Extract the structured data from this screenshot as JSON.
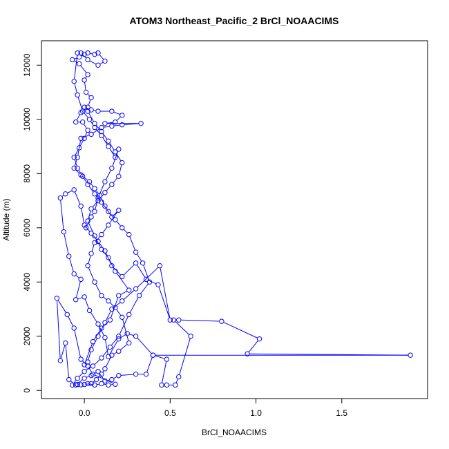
{
  "chart_data": {
    "type": "line",
    "title": "ATOM3 Northeast_Pacific_2 BrCl_NOAACIMS",
    "xlabel": "BrCl_NOAACIMS",
    "ylabel": "Altitude (m)",
    "xlim": [
      -0.25,
      2.0
    ],
    "ylim": [
      -300,
      12900
    ],
    "x_ticks": [
      0.0,
      0.5,
      1.0,
      1.5
    ],
    "x_tick_labels": [
      "0.0",
      "0.5",
      "1.0",
      "1.5"
    ],
    "y_ticks": [
      0,
      2000,
      4000,
      6000,
      8000,
      10000,
      12000
    ],
    "y_tick_labels": [
      "0",
      "2000",
      "4000",
      "6000",
      "8000",
      "10000",
      "12000"
    ],
    "grid": false,
    "series": [
      {
        "color": "#0000ff",
        "marker": "open-circle",
        "points": [
          [
            0.02,
            250
          ],
          [
            0.06,
            200
          ],
          [
            0.1,
            250
          ],
          [
            0.14,
            200
          ],
          [
            0.18,
            230
          ],
          [
            0.05,
            600
          ],
          [
            0.02,
            900
          ],
          [
            -0.02,
            1150
          ],
          [
            -0.06,
            2300
          ],
          [
            -0.1,
            2800
          ],
          [
            -0.16,
            3400
          ],
          [
            -0.14,
            1100
          ],
          [
            -0.11,
            1750
          ],
          [
            -0.09,
            400
          ],
          [
            -0.05,
            200
          ],
          [
            0.0,
            450
          ],
          [
            0.04,
            550
          ],
          [
            0.08,
            700
          ],
          [
            0.12,
            350
          ],
          [
            0.16,
            400
          ],
          [
            0.2,
            550
          ],
          [
            0.3,
            600
          ],
          [
            0.36,
            600
          ],
          [
            0.4,
            1300
          ],
          [
            0.48,
            1150
          ],
          [
            0.45,
            200
          ],
          [
            0.48,
            200
          ],
          [
            0.53,
            200
          ],
          [
            0.55,
            500
          ],
          [
            0.62,
            2000
          ],
          [
            0.52,
            2600
          ],
          [
            0.55,
            2600
          ],
          [
            0.8,
            2550
          ],
          [
            1.02,
            1900
          ],
          [
            0.95,
            1350
          ],
          [
            1.9,
            1300
          ],
          [
            0.4,
            1300
          ],
          [
            0.3,
            2000
          ],
          [
            0.25,
            2100
          ],
          [
            0.2,
            1900
          ],
          [
            0.14,
            1250
          ],
          [
            0.12,
            1950
          ],
          [
            0.08,
            2450
          ],
          [
            0.03,
            2950
          ],
          [
            0.0,
            3450
          ],
          [
            -0.05,
            3350
          ],
          [
            -0.02,
            4100
          ],
          [
            -0.06,
            4300
          ],
          [
            -0.09,
            4950
          ],
          [
            -0.12,
            5850
          ],
          [
            -0.14,
            7100
          ],
          [
            -0.11,
            7250
          ],
          [
            -0.06,
            7400
          ],
          [
            -0.02,
            6800
          ],
          [
            0.0,
            6100
          ],
          [
            0.04,
            5800
          ],
          [
            0.08,
            5500
          ],
          [
            0.12,
            5150
          ],
          [
            0.16,
            4600
          ],
          [
            0.22,
            4200
          ],
          [
            0.3,
            4700
          ],
          [
            0.36,
            4100
          ],
          [
            0.43,
            3900
          ],
          [
            0.5,
            2600
          ],
          [
            0.44,
            4600
          ],
          [
            0.3,
            3750
          ],
          [
            0.22,
            3300
          ],
          [
            0.16,
            3000
          ],
          [
            0.12,
            2500
          ],
          [
            0.08,
            2000
          ],
          [
            0.04,
            1500
          ],
          [
            0.02,
            1050
          ],
          [
            0.0,
            950
          ],
          [
            0.05,
            1800
          ],
          [
            0.1,
            2300
          ],
          [
            0.15,
            2600
          ],
          [
            0.2,
            3500
          ],
          [
            0.26,
            3700
          ],
          [
            0.18,
            4400
          ],
          [
            0.14,
            4900
          ],
          [
            0.1,
            5200
          ],
          [
            0.06,
            5700
          ],
          [
            0.02,
            6250
          ],
          [
            0.04,
            6700
          ],
          [
            0.08,
            7000
          ],
          [
            0.12,
            7300
          ],
          [
            0.16,
            7600
          ],
          [
            0.2,
            7900
          ],
          [
            0.22,
            8400
          ],
          [
            0.18,
            8800
          ],
          [
            0.14,
            9200
          ],
          [
            0.1,
            9550
          ],
          [
            0.06,
            9850
          ],
          [
            0.02,
            10300
          ],
          [
            0.0,
            10450
          ],
          [
            0.04,
            10350
          ],
          [
            0.08,
            10300
          ],
          [
            0.16,
            10300
          ],
          [
            0.22,
            10150
          ],
          [
            0.18,
            9900
          ],
          [
            0.12,
            9850
          ],
          [
            0.33,
            9850
          ],
          [
            0.22,
            9800
          ],
          [
            0.16,
            9750
          ],
          [
            0.1,
            9700
          ],
          [
            0.04,
            9450
          ],
          [
            -0.02,
            9300
          ],
          [
            -0.04,
            8600
          ],
          [
            -0.06,
            8200
          ],
          [
            -0.02,
            7950
          ],
          [
            0.03,
            7700
          ],
          [
            0.06,
            7450
          ],
          [
            0.09,
            7200
          ],
          [
            0.12,
            6800
          ],
          [
            0.16,
            6400
          ],
          [
            0.2,
            6650
          ],
          [
            0.14,
            6100
          ],
          [
            0.1,
            5750
          ],
          [
            0.06,
            5450
          ],
          [
            0.04,
            5050
          ],
          [
            0.02,
            4600
          ],
          [
            0.06,
            4000
          ],
          [
            0.1,
            3500
          ],
          [
            0.14,
            3300
          ],
          [
            0.18,
            3050
          ],
          [
            0.22,
            2700
          ],
          [
            0.26,
            1750
          ],
          [
            0.2,
            1450
          ],
          [
            0.16,
            1300
          ],
          [
            0.12,
            800
          ],
          [
            0.1,
            600
          ],
          [
            0.07,
            400
          ],
          [
            0.04,
            250
          ],
          [
            0.0,
            220
          ],
          [
            -0.02,
            210
          ],
          [
            -0.04,
            220
          ],
          [
            -0.07,
            200
          ],
          [
            -0.04,
            450
          ],
          [
            0.0,
            700
          ],
          [
            0.05,
            900
          ],
          [
            0.1,
            1200
          ],
          [
            0.15,
            1600
          ],
          [
            0.2,
            2000
          ],
          [
            0.26,
            2800
          ],
          [
            0.32,
            3500
          ],
          [
            0.38,
            4000
          ],
          [
            0.34,
            4700
          ],
          [
            0.3,
            5100
          ],
          [
            0.26,
            5750
          ],
          [
            0.22,
            6000
          ],
          [
            0.18,
            6300
          ],
          [
            0.14,
            6600
          ],
          [
            0.1,
            6950
          ],
          [
            0.06,
            7250
          ],
          [
            0.02,
            7600
          ],
          [
            -0.01,
            7900
          ],
          [
            -0.04,
            8200
          ],
          [
            -0.06,
            8600
          ],
          [
            -0.03,
            8950
          ],
          [
            0.0,
            9300
          ],
          [
            0.02,
            9600
          ],
          [
            -0.01,
            9900
          ],
          [
            -0.05,
            9900
          ],
          [
            -0.02,
            10250
          ],
          [
            0.02,
            10450
          ],
          [
            0.04,
            10800
          ],
          [
            0.01,
            11000
          ],
          [
            0.0,
            11450
          ],
          [
            0.02,
            11650
          ],
          [
            -0.03,
            12050
          ],
          [
            -0.07,
            12200
          ],
          [
            -0.03,
            12300
          ],
          [
            0.0,
            12400
          ],
          [
            0.02,
            12450
          ],
          [
            0.06,
            12400
          ],
          [
            0.08,
            12450
          ],
          [
            0.12,
            12150
          ],
          [
            0.08,
            12000
          ],
          [
            0.02,
            12200
          ],
          [
            -0.02,
            12450
          ],
          [
            -0.04,
            12450
          ],
          [
            -0.06,
            11400
          ],
          [
            -0.04,
            10900
          ],
          [
            -0.01,
            10300
          ],
          [
            0.03,
            10000
          ],
          [
            0.06,
            9700
          ],
          [
            0.1,
            9400
          ],
          [
            0.14,
            9000
          ],
          [
            0.18,
            8600
          ],
          [
            0.2,
            8900
          ],
          [
            0.16,
            8200
          ],
          [
            0.12,
            7700
          ],
          [
            0.08,
            7100
          ],
          [
            0.06,
            6600
          ],
          [
            0.04,
            6400
          ],
          [
            0.01,
            6000
          ]
        ]
      }
    ]
  }
}
